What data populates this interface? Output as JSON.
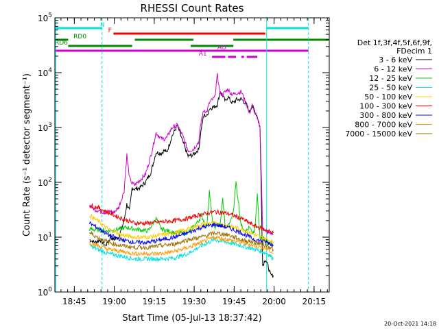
{
  "chart_data": {
    "type": "line",
    "title": "RHESSI Count Rates",
    "xlabel": "Start Time (05-Jul-13 18:37:42)",
    "ylabel": "Count Rate (s⁻¹ detector segment⁻¹)",
    "yscale": "log",
    "ylim_exp": [
      0,
      5
    ],
    "ytick_exponents": [
      0,
      1,
      2,
      3,
      4,
      5
    ],
    "xlim_minutes": [
      0,
      103
    ],
    "xticks": [
      {
        "label": "18:45",
        "minute": 7.3
      },
      {
        "label": "19:00",
        "minute": 22.3
      },
      {
        "label": "19:15",
        "minute": 37.3
      },
      {
        "label": "19:30",
        "minute": 52.3
      },
      {
        "label": "19:45",
        "minute": 67.3
      },
      {
        "label": "20:00",
        "minute": 82.3
      },
      {
        "label": "20:15",
        "minute": 97.3
      }
    ],
    "legend_placement": "right",
    "legend_header": [
      "Det 1f,3f,4f,5f,6f,9f,",
      "FDecim 1"
    ],
    "series": [
      {
        "name": "3 - 6 keV",
        "color": "#000000",
        "x": [
          13,
          15,
          17,
          19,
          21,
          22,
          24,
          26,
          27,
          28,
          29,
          30,
          32,
          34,
          36,
          38,
          40,
          41,
          42,
          44,
          46,
          48,
          50,
          52,
          54,
          55,
          56,
          57,
          58,
          59,
          60,
          61,
          62,
          63,
          64,
          65,
          66,
          67,
          68,
          70,
          72,
          73,
          74,
          75,
          76,
          77,
          78,
          79,
          80,
          81,
          82
        ],
        "y": [
          9,
          8,
          9,
          7,
          10,
          9,
          10,
          20,
          40,
          30,
          80,
          75,
          80,
          100,
          150,
          350,
          340,
          380,
          350,
          700,
          1100,
          550,
          300,
          320,
          400,
          1000,
          1700,
          1600,
          2200,
          2300,
          2400,
          2600,
          4500,
          3800,
          3000,
          3700,
          3000,
          2800,
          3200,
          3300,
          2600,
          1900,
          2500,
          2000,
          1600,
          1000,
          3,
          4,
          3,
          2,
          2
        ]
      },
      {
        "name": "6 - 12 keV",
        "color": "#cc00cc",
        "x": [
          13,
          15,
          17,
          19,
          21,
          22,
          24,
          26,
          27,
          28,
          29,
          30,
          32,
          34,
          36,
          38,
          40,
          41,
          42,
          44,
          46,
          48,
          50,
          52,
          54,
          55,
          56,
          57,
          58,
          59,
          60,
          61,
          62,
          63,
          64,
          65,
          66,
          67,
          68,
          70,
          72,
          73,
          74,
          75,
          76,
          77,
          78,
          79,
          80,
          81,
          82
        ],
        "y": [
          38,
          32,
          30,
          28,
          30,
          28,
          35,
          70,
          320,
          120,
          95,
          90,
          110,
          140,
          300,
          800,
          620,
          620,
          650,
          1000,
          1100,
          700,
          380,
          400,
          550,
          1400,
          2100,
          1900,
          2800,
          3200,
          3500,
          9000,
          4200,
          4000,
          4500,
          5000,
          4200,
          4000,
          4200,
          4500,
          2600,
          1800,
          2500,
          1900,
          1400,
          1100,
          15,
          13,
          12,
          12,
          11
        ]
      },
      {
        "name": "12 - 25 keV",
        "color": "#00cc00",
        "x": [
          13,
          20,
          27,
          30,
          35,
          38,
          40,
          45,
          50,
          54,
          55,
          57,
          58,
          59,
          60,
          61,
          62,
          63,
          64,
          65,
          66,
          67,
          68,
          70,
          72,
          73,
          74,
          75,
          76,
          77,
          78,
          79,
          80,
          81,
          82
        ],
        "y": [
          14,
          13,
          15,
          14,
          13,
          22,
          14,
          12,
          12,
          20,
          25,
          15,
          70,
          22,
          15,
          18,
          16,
          50,
          15,
          16,
          20,
          30,
          100,
          16,
          13,
          15,
          12,
          12,
          60,
          10,
          10,
          9,
          8,
          8,
          7
        ]
      },
      {
        "name": "25 - 50 keV",
        "color": "#00e0e0",
        "x": [
          13,
          16,
          20,
          25,
          30,
          35,
          40,
          45,
          50,
          55,
          60,
          65,
          70,
          75,
          80,
          82
        ],
        "y": [
          7,
          6,
          5,
          4.5,
          4,
          4,
          4,
          4.2,
          5,
          7,
          9,
          8,
          7,
          6,
          5,
          4
        ]
      },
      {
        "name": "50 - 100 keV",
        "color": "#ffcc00",
        "x": [
          13,
          16,
          20,
          25,
          30,
          35,
          40,
          45,
          50,
          55,
          60,
          65,
          70,
          75,
          80,
          82
        ],
        "y": [
          25,
          20,
          14,
          11,
          10,
          10,
          11,
          12,
          14,
          17,
          18,
          16,
          14,
          11,
          9,
          8
        ]
      },
      {
        "name": "100 - 300 keV",
        "color": "#ee0000",
        "x": [
          13,
          16,
          20,
          25,
          30,
          35,
          40,
          45,
          50,
          55,
          60,
          65,
          70,
          75,
          80,
          82
        ],
        "y": [
          38,
          35,
          28,
          22,
          18,
          18,
          19,
          20,
          22,
          26,
          29,
          27,
          22,
          16,
          13,
          12
        ]
      },
      {
        "name": "300 - 800 keV",
        "color": "#0000ee",
        "x": [
          13,
          16,
          20,
          25,
          30,
          35,
          40,
          45,
          50,
          55,
          60,
          65,
          70,
          75,
          80,
          82
        ],
        "y": [
          18,
          15,
          11,
          9,
          8,
          8,
          9,
          10,
          12,
          15,
          17,
          15,
          12,
          9,
          8,
          7
        ]
      },
      {
        "name": "800 - 7000 keV",
        "color": "#ff9900",
        "x": [
          13,
          16,
          20,
          25,
          30,
          35,
          40,
          45,
          50,
          55,
          60,
          65,
          70,
          75,
          80,
          82
        ],
        "y": [
          8,
          7,
          6,
          5.5,
          5,
          5,
          5,
          5.5,
          6.5,
          8,
          10,
          9,
          8,
          7,
          6,
          5
        ]
      },
      {
        "name": "7000 - 15000 keV",
        "color": "#a07000",
        "x": [
          13,
          16,
          20,
          25,
          30,
          35,
          40,
          45,
          50,
          55,
          60,
          65,
          70,
          75,
          80,
          82
        ],
        "y": [
          12,
          10,
          8,
          7,
          6.5,
          6.5,
          7,
          7.5,
          9,
          10,
          12,
          11,
          9,
          8,
          7,
          6
        ]
      }
    ],
    "vlines": [
      {
        "minute": 0.3,
        "color": "#00e0e0",
        "style": "solid"
      },
      {
        "minute": 17.7,
        "color": "#00e0e0",
        "style": "dashed"
      },
      {
        "minute": 79.5,
        "color": "#00e0e0",
        "style": "solid"
      },
      {
        "minute": 95.2,
        "color": "#00e0e0",
        "style": "dashed"
      }
    ],
    "flag_bars": [
      {
        "label": "N",
        "color": "#00e0e0",
        "label_minute": 17,
        "level": 0,
        "segments": [
          [
            0.3,
            17.7
          ],
          [
            79.5,
            95.2
          ]
        ]
      },
      {
        "label": "F",
        "color": "#ee0000",
        "label_minute": 20,
        "level": 1,
        "segments": [
          [
            22,
            79
          ]
        ]
      },
      {
        "label": "RD0",
        "color": "#008800",
        "label_minute": 7,
        "level": 2,
        "segments": [
          [
            0.5,
            5
          ],
          [
            30,
            52
          ],
          [
            67,
            103
          ]
        ]
      },
      {
        "label": "RD6",
        "color": "#008800",
        "label_minute": 0,
        "level": 3,
        "segments": [
          [
            5,
            29
          ],
          [
            51,
            67
          ]
        ]
      },
      {
        "label": "AO",
        "color": "#cc00cc",
        "label_minute": 61,
        "level": 4,
        "segments": [
          [
            0,
            95.2
          ]
        ]
      },
      {
        "label": "A1",
        "color": "#cc00cc",
        "label_minute": 54,
        "level": 5,
        "segments": [
          [
            59,
            64
          ],
          [
            65,
            68
          ],
          [
            70,
            71
          ],
          [
            72,
            76
          ]
        ]
      }
    ],
    "timestamp": "20-Oct-2021 14:18"
  }
}
